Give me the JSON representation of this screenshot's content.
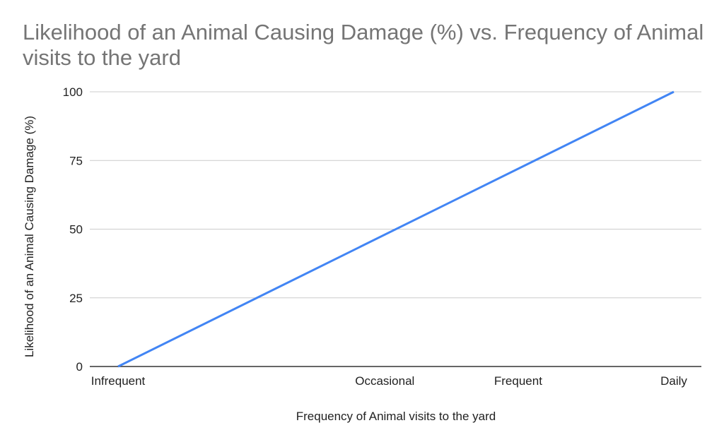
{
  "chart_data": {
    "type": "line",
    "title": "Likelihood of an Animal Causing Damage (%) vs. Frequency of Animal visits to the yard",
    "xlabel": "Frequency of Animal visits to the yard",
    "ylabel": "Likelihood of an Animal Causing Damage (%)",
    "categories": [
      "Infrequent",
      "Occasional",
      "Frequent",
      "Daily"
    ],
    "x_positions": [
      0,
      1.2,
      1.8,
      2.5
    ],
    "yticks": [
      0,
      25,
      50,
      75,
      100
    ],
    "ylim": [
      0,
      100
    ],
    "grid": true,
    "series": [
      {
        "values": [
          0,
          100
        ],
        "x": [
          0,
          2.5
        ],
        "color": "#4285f4"
      }
    ]
  }
}
